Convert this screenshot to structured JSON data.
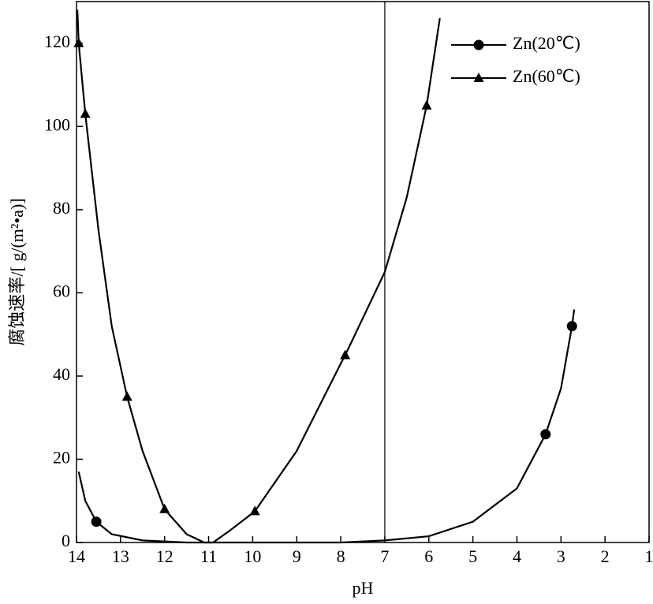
{
  "chart_data": {
    "type": "line",
    "xlabel": "pH",
    "ylabel": "腐蚀速率/[ g/(m²•a)]",
    "xlim": [
      14,
      1
    ],
    "xticks": [
      14,
      13,
      12,
      11,
      10,
      9,
      8,
      7,
      6,
      5,
      4,
      3,
      2,
      1
    ],
    "ylim": [
      0,
      130
    ],
    "yticks": [
      0,
      20,
      40,
      60,
      80,
      100,
      120
    ],
    "reference_x": 7,
    "legend": "upper right",
    "series": [
      {
        "name": "Zn(20℃)",
        "color": "#000000",
        "marker": "circle",
        "x": [
          13.55,
          3.35,
          2.75
        ],
        "values": [
          5,
          26,
          52
        ],
        "curve": {
          "x": [
            13.95,
            13.8,
            13.55,
            13.2,
            12.5,
            11.5,
            10,
            8,
            7,
            6,
            5,
            4,
            3.35,
            3,
            2.75,
            2.7
          ],
          "values": [
            17,
            10,
            5,
            2,
            0.5,
            0,
            0,
            0,
            0.5,
            1.5,
            5,
            13,
            26,
            37,
            52,
            56
          ]
        }
      },
      {
        "name": "Zn(60℃)",
        "color": "#000000",
        "marker": "triangle",
        "x": [
          13.95,
          13.8,
          12.85,
          12,
          9.95,
          7.9,
          6.05
        ],
        "values": [
          120,
          103,
          35,
          8,
          7.5,
          45,
          105
        ],
        "curve": {
          "x": [
            13.98,
            13.95,
            13.8,
            13.5,
            13.2,
            12.85,
            12.5,
            12,
            11.5,
            11.1,
            10.9,
            10.5,
            9.95,
            9,
            8,
            7.9,
            7,
            6.5,
            6.05,
            5.75
          ],
          "values": [
            128,
            120,
            103,
            75,
            52,
            35,
            22,
            8,
            2,
            0,
            0,
            3,
            7.5,
            22,
            43,
            45,
            65,
            83,
            105,
            126
          ]
        }
      }
    ]
  }
}
